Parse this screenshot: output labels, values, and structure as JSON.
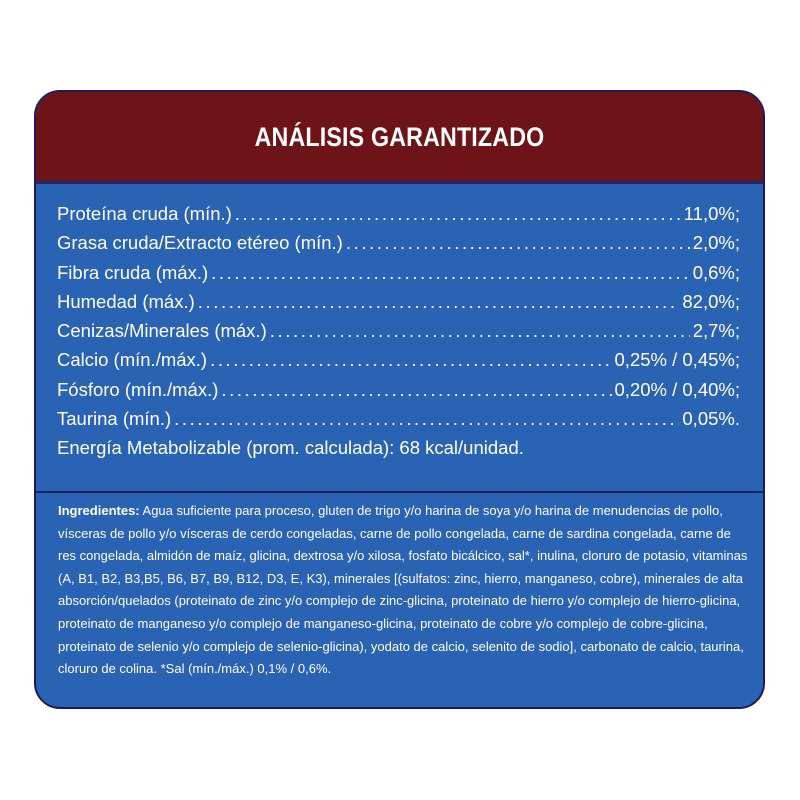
{
  "title": "ANÁLISIS GARANTIZADO",
  "analysis": [
    {
      "label": "Proteína cruda (mín.)",
      "value": "11,0%;"
    },
    {
      "label": "Grasa cruda/Extracto etéreo (mín.)",
      "value": "2,0%;"
    },
    {
      "label": "Fibra cruda (máx.)",
      "value": "0,6%;"
    },
    {
      "label": "Humedad (máx.)",
      "value": "82,0%;"
    },
    {
      "label": "Cenizas/Minerales (máx.)",
      "value": "2,7%;"
    },
    {
      "label": "Calcio (mín./máx.)",
      "value": "0,25% / 0,45%;"
    },
    {
      "label": "Fósforo (mín./máx.)",
      "value": "0,20% / 0,40%;"
    },
    {
      "label": "Taurina (mín.)",
      "value": "0,05%."
    }
  ],
  "energy": "Energía Metabolizable (prom. calculada): 68 kcal/unidad.",
  "ingredients": {
    "label": "Ingredientes:",
    "text": " Agua suficiente para proceso, gluten de trigo y/o harina de soya y/o harina de menudencias de pollo, vísceras de pollo y/o vísceras de cerdo congeladas, carne de pollo congelada, carne de sardina congelada, carne de res congelada, almidón de maíz, glicina, dextrosa y/o xilosa, fosfato bicálcico, sal*, inulina, cloruro de potasio, vitaminas (A, B1, B2, B3,B5, B6, B7, B9, B12, D3, E, K3), minerales [(sulfatos: zinc, hierro, manganeso, cobre), minerales de alta absorción/quelados (proteinato de zinc y/o complejo de zinc-glicina, proteinato de hierro y/o complejo de hierro-glicina, proteinato de manganeso y/o complejo de manganeso-glicina, proteinato de cobre y/o complejo de cobre-glicina, proteinato de selenio y/o complejo de selenio-glicina), yodato de calcio, selenito de sodio], carbonato de calcio, taurina, cloruro de colina. *Sal (mín./máx.) 0,1% / 0,6%."
  },
  "colors": {
    "header": "#6e1318",
    "panel": "#2a63b4",
    "text": "#ffffff"
  }
}
